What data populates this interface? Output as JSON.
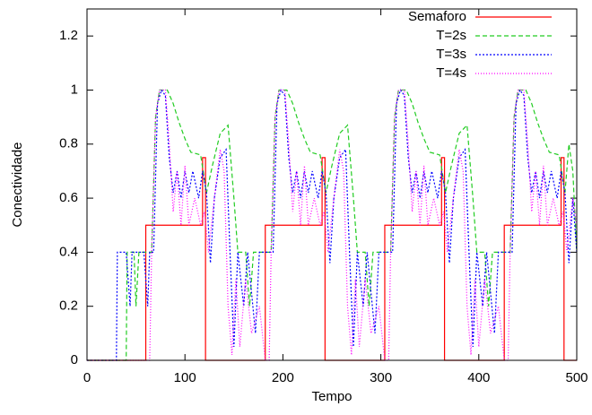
{
  "chart_data": {
    "type": "line",
    "xlabel": "Tempo",
    "ylabel": "Conectividade",
    "xlim": [
      0,
      500
    ],
    "ylim": [
      0,
      1.3
    ],
    "xticks": [
      0,
      100,
      200,
      300,
      400,
      500
    ],
    "yticks": [
      0,
      0.2,
      0.4,
      0.6,
      0.8,
      1,
      1.2
    ],
    "legend": "top-right",
    "series": [
      {
        "name": "Semaforo",
        "color": "#ff0000",
        "style": "solid",
        "x": [
          0,
          60,
          60,
          118,
          118,
          121,
          121,
          182,
          182,
          240,
          240,
          243,
          243,
          304,
          304,
          362,
          362,
          365,
          365,
          426,
          426,
          484,
          484,
          487,
          487,
          500
        ],
        "values": [
          0,
          0,
          0.5,
          0.5,
          0.75,
          0.75,
          0,
          0,
          0.5,
          0.5,
          0.75,
          0.75,
          0,
          0,
          0.5,
          0.5,
          0.75,
          0.75,
          0,
          0,
          0.5,
          0.5,
          0.75,
          0.75,
          0,
          0
        ]
      },
      {
        "name": "T=2s",
        "color": "#22cc22",
        "style": "dashed",
        "x": [
          0,
          40,
          41,
          48,
          50,
          53,
          60,
          66,
          70,
          74,
          82,
          88,
          94,
          100,
          106,
          116,
          122,
          128,
          136,
          144,
          150,
          154,
          162,
          166,
          170,
          178,
          184,
          188,
          192,
          196,
          204,
          210,
          216,
          222,
          228,
          238,
          244,
          250,
          258,
          266,
          272,
          276,
          284,
          288,
          292,
          300,
          306,
          310,
          314,
          318,
          326,
          332,
          338,
          344,
          350,
          360,
          366,
          372,
          380,
          388,
          394,
          398,
          406,
          410,
          414,
          422,
          428,
          432,
          436,
          440,
          448,
          454,
          460,
          466,
          472,
          482,
          488,
          492,
          496,
          500
        ],
        "values": [
          0,
          0,
          0.4,
          0.4,
          0.2,
          0.4,
          0.4,
          0.4,
          0.9,
          1,
          1,
          0.95,
          0.88,
          0.82,
          0.77,
          0.76,
          0.62,
          0.72,
          0.84,
          0.87,
          0.6,
          0.4,
          0.4,
          0.2,
          0.4,
          0.4,
          0.4,
          0.4,
          0.9,
          1,
          1,
          0.95,
          0.88,
          0.82,
          0.77,
          0.76,
          0.62,
          0.72,
          0.84,
          0.87,
          0.6,
          0.4,
          0.4,
          0.2,
          0.4,
          0.4,
          0.4,
          0.4,
          0.9,
          1,
          1,
          0.95,
          0.88,
          0.82,
          0.77,
          0.76,
          0.62,
          0.72,
          0.84,
          0.87,
          0.6,
          0.4,
          0.4,
          0.2,
          0.4,
          0.4,
          0.4,
          0.4,
          0.9,
          1,
          1,
          0.95,
          0.88,
          0.82,
          0.77,
          0.76,
          0.62,
          0.8,
          0.7,
          0.4
        ]
      },
      {
        "name": "T=3s",
        "color": "#0000ff",
        "style": "dotted",
        "x": [
          0,
          30,
          31,
          40,
          44,
          46,
          58,
          62,
          64,
          68,
          72,
          76,
          80,
          84,
          88,
          92,
          96,
          100,
          104,
          108,
          114,
          118,
          122,
          126,
          130,
          136,
          142,
          146,
          150,
          154,
          160,
          164,
          172,
          176,
          182,
          186,
          190,
          194,
          198,
          202,
          206,
          210,
          214,
          218,
          222,
          226,
          230,
          236,
          240,
          244,
          248,
          252,
          258,
          264,
          268,
          272,
          276,
          282,
          286,
          294,
          298,
          304,
          308,
          312,
          316,
          320,
          324,
          328,
          332,
          336,
          340,
          344,
          348,
          352,
          358,
          362,
          366,
          370,
          374,
          380,
          386,
          390,
          394,
          398,
          404,
          408,
          416,
          420,
          426,
          430,
          434,
          438,
          442,
          446,
          450,
          454,
          458,
          462,
          466,
          470,
          474,
          480,
          484,
          488,
          492,
          496,
          500
        ],
        "values": [
          0,
          0,
          0.4,
          0.4,
          0.2,
          0.4,
          0.4,
          0.2,
          0.4,
          0.4,
          0.95,
          1,
          0.98,
          0.75,
          0.62,
          0.7,
          0.6,
          0.7,
          0.62,
          0.7,
          0.6,
          0.7,
          0.62,
          0.36,
          0.6,
          0.75,
          0.78,
          0.4,
          0.05,
          0.4,
          0.2,
          0.4,
          0.1,
          0.4,
          0.4,
          0.4,
          0.4,
          0.95,
          1,
          0.98,
          0.75,
          0.62,
          0.7,
          0.6,
          0.7,
          0.62,
          0.7,
          0.6,
          0.7,
          0.62,
          0.36,
          0.6,
          0.75,
          0.78,
          0.4,
          0.05,
          0.4,
          0.2,
          0.4,
          0.1,
          0.4,
          0.4,
          0.4,
          0.4,
          0.95,
          1,
          0.98,
          0.75,
          0.62,
          0.7,
          0.6,
          0.7,
          0.62,
          0.7,
          0.6,
          0.7,
          0.62,
          0.36,
          0.6,
          0.75,
          0.78,
          0.4,
          0.05,
          0.4,
          0.2,
          0.4,
          0.1,
          0.4,
          0.4,
          0.4,
          0.4,
          0.95,
          1,
          0.98,
          0.75,
          0.62,
          0.7,
          0.6,
          0.7,
          0.62,
          0.7,
          0.6,
          0.7,
          0.62,
          0.36,
          0.6,
          0.4
        ]
      },
      {
        "name": "T=4s",
        "color": "#ff00ff",
        "style": "fine-dotted",
        "x": [
          0,
          64,
          66,
          70,
          74,
          80,
          84,
          88,
          92,
          96,
          100,
          104,
          110,
          116,
          120,
          124,
          130,
          136,
          140,
          144,
          148,
          152,
          156,
          162,
          168,
          176,
          182,
          186,
          188,
          192,
          196,
          202,
          206,
          210,
          214,
          218,
          222,
          226,
          232,
          238,
          242,
          246,
          252,
          258,
          262,
          266,
          270,
          274,
          278,
          284,
          290,
          298,
          304,
          308,
          310,
          314,
          318,
          324,
          328,
          332,
          336,
          340,
          344,
          348,
          354,
          360,
          364,
          368,
          374,
          380,
          384,
          388,
          392,
          396,
          400,
          406,
          412,
          420,
          426,
          430,
          432,
          436,
          440,
          446,
          450,
          454,
          458,
          462,
          466,
          470,
          476,
          482,
          486,
          490,
          496,
          500
        ],
        "values": [
          0,
          0,
          0.4,
          0.9,
          1,
          1,
          0.8,
          0.55,
          0.7,
          0.5,
          0.72,
          0.5,
          0.6,
          0.5,
          0.55,
          0.4,
          0.6,
          0.78,
          0.7,
          0.2,
          0.02,
          0.3,
          0.05,
          0.3,
          0.1,
          0.2,
          0,
          0,
          0.4,
          0.9,
          1,
          1,
          0.8,
          0.55,
          0.7,
          0.5,
          0.72,
          0.5,
          0.6,
          0.5,
          0.55,
          0.4,
          0.6,
          0.78,
          0.7,
          0.2,
          0.02,
          0.3,
          0.05,
          0.3,
          0.1,
          0.2,
          0,
          0,
          0.4,
          0.9,
          1,
          1,
          0.8,
          0.55,
          0.7,
          0.5,
          0.72,
          0.5,
          0.6,
          0.5,
          0.55,
          0.4,
          0.6,
          0.78,
          0.7,
          0.2,
          0.02,
          0.3,
          0.05,
          0.3,
          0.1,
          0.2,
          0,
          0,
          0.4,
          0.9,
          1,
          1,
          0.8,
          0.55,
          0.7,
          0.5,
          0.72,
          0.5,
          0.6,
          0.5,
          0.55,
          0.4,
          0.6,
          0.5
        ]
      }
    ]
  }
}
